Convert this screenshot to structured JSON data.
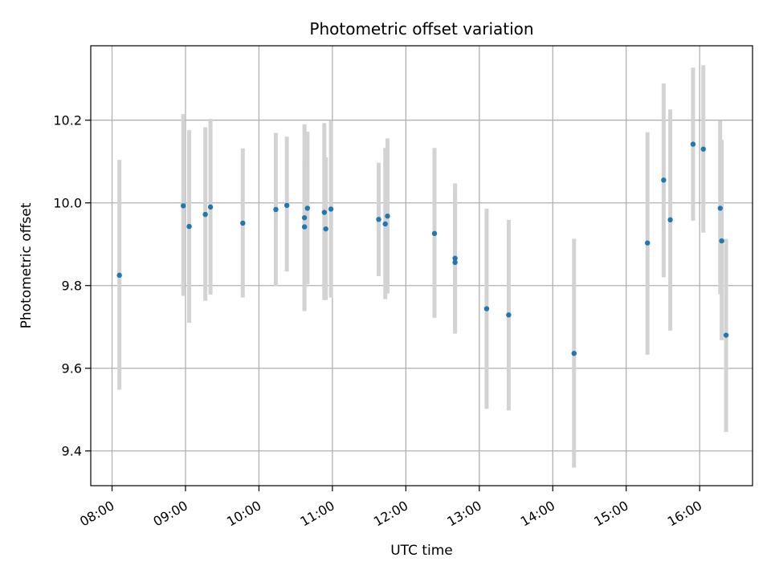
{
  "chart_data": {
    "type": "scatter",
    "title": "Photometric offset variation",
    "xlabel": "UTC time",
    "ylabel": "Photometric offset",
    "grid": true,
    "x_unit": "hours since 08:00 UTC",
    "xlim": [
      -0.29,
      8.72
    ],
    "ylim": [
      9.316,
      10.38
    ],
    "x_ticks": [
      0,
      1,
      2,
      3,
      4,
      5,
      6,
      7,
      8
    ],
    "x_tick_labels": [
      "08:00",
      "09:00",
      "10:00",
      "11:00",
      "12:00",
      "13:00",
      "14:00",
      "15:00",
      "16:00"
    ],
    "y_ticks": [
      9.4,
      9.6,
      9.8,
      10.0,
      10.2
    ],
    "y_tick_labels": [
      "9.4",
      "9.6",
      "9.8",
      "10.0",
      "10.2"
    ],
    "colors": {
      "point": "#1f77b4",
      "errorbar": "#d3d3d3",
      "grid": "#b0b0b0"
    },
    "series": [
      {
        "name": "offset",
        "points": [
          {
            "x": 0.1,
            "y": 9.825,
            "lo": 9.548,
            "hi": 10.104
          },
          {
            "x": 0.97,
            "y": 9.993,
            "lo": 9.775,
            "hi": 10.215
          },
          {
            "x": 1.05,
            "y": 9.943,
            "lo": 9.71,
            "hi": 10.176
          },
          {
            "x": 1.27,
            "y": 9.972,
            "lo": 9.763,
            "hi": 10.183
          },
          {
            "x": 1.34,
            "y": 9.99,
            "lo": 9.778,
            "hi": 10.203
          },
          {
            "x": 1.78,
            "y": 9.951,
            "lo": 9.771,
            "hi": 10.132
          },
          {
            "x": 2.23,
            "y": 9.984,
            "lo": 9.799,
            "hi": 10.169
          },
          {
            "x": 2.38,
            "y": 9.994,
            "lo": 9.834,
            "hi": 10.16
          },
          {
            "x": 2.62,
            "y": 9.964,
            "lo": 9.738,
            "hi": 10.19
          },
          {
            "x": 2.62,
            "y": 9.942,
            "lo": 9.74,
            "hi": 10.1
          },
          {
            "x": 2.66,
            "y": 9.987,
            "lo": 9.803,
            "hi": 10.172
          },
          {
            "x": 2.89,
            "y": 9.977,
            "lo": 9.765,
            "hi": 10.193
          },
          {
            "x": 2.91,
            "y": 9.937,
            "lo": 9.765,
            "hi": 10.11
          },
          {
            "x": 2.98,
            "y": 9.985,
            "lo": 9.771,
            "hi": 10.198
          },
          {
            "x": 3.63,
            "y": 9.96,
            "lo": 9.823,
            "hi": 10.097
          },
          {
            "x": 3.72,
            "y": 9.949,
            "lo": 9.767,
            "hi": 10.133
          },
          {
            "x": 3.75,
            "y": 9.968,
            "lo": 9.781,
            "hi": 10.156
          },
          {
            "x": 4.39,
            "y": 9.926,
            "lo": 9.722,
            "hi": 10.133
          },
          {
            "x": 4.67,
            "y": 9.856,
            "lo": 9.684,
            "hi": 10.047
          },
          {
            "x": 4.67,
            "y": 9.866,
            "lo": 9.7,
            "hi": 10.03
          },
          {
            "x": 5.1,
            "y": 9.744,
            "lo": 9.502,
            "hi": 9.986
          },
          {
            "x": 5.4,
            "y": 9.729,
            "lo": 9.498,
            "hi": 9.959
          },
          {
            "x": 6.29,
            "y": 9.636,
            "lo": 9.36,
            "hi": 9.913
          },
          {
            "x": 7.29,
            "y": 9.903,
            "lo": 9.633,
            "hi": 10.171
          },
          {
            "x": 7.51,
            "y": 10.055,
            "lo": 9.82,
            "hi": 10.289
          },
          {
            "x": 7.6,
            "y": 9.959,
            "lo": 9.691,
            "hi": 10.226
          },
          {
            "x": 7.91,
            "y": 10.142,
            "lo": 9.957,
            "hi": 10.327
          },
          {
            "x": 8.05,
            "y": 10.13,
            "lo": 9.928,
            "hi": 10.333
          },
          {
            "x": 8.28,
            "y": 9.987,
            "lo": 9.779,
            "hi": 10.199
          },
          {
            "x": 8.3,
            "y": 9.908,
            "lo": 9.668,
            "hi": 10.152
          },
          {
            "x": 8.36,
            "y": 9.68,
            "lo": 9.446,
            "hi": 9.913
          }
        ]
      }
    ]
  }
}
